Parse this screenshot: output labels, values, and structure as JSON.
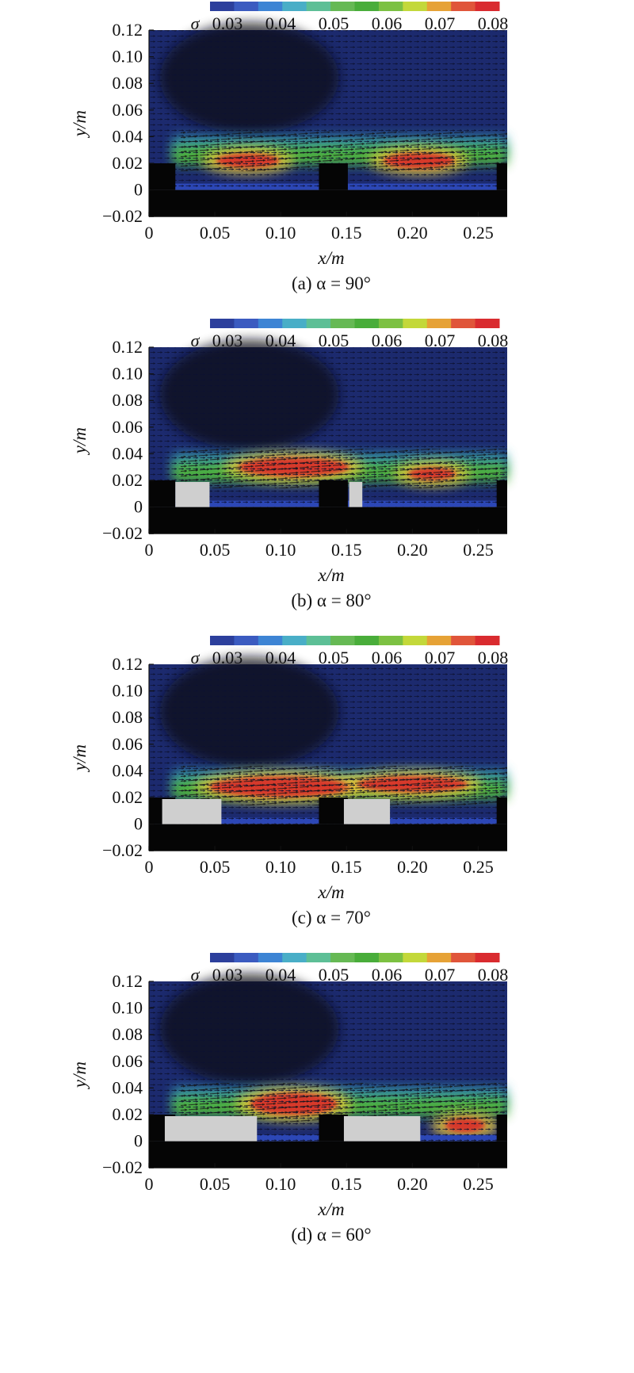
{
  "figure": {
    "colorbar": {
      "symbol": "σ",
      "tick_labels": [
        "0.03",
        "0.04",
        "0.05",
        "0.06",
        "0.07",
        "0.08"
      ],
      "colors": [
        "#2c3f9c",
        "#3b5bc0",
        "#3d84d4",
        "#49aec7",
        "#5dbf96",
        "#66b954",
        "#49ad3a",
        "#7cc142",
        "#c3d83a",
        "#e6a236",
        "#e0553a",
        "#d92b2f"
      ]
    },
    "panels": [
      {
        "caption": "(a) α = 90°",
        "ylabel": "y/m",
        "xlabel": "x/m",
        "y_ticks": [
          "0.12",
          "0.10",
          "0.08",
          "0.06",
          "0.04",
          "0.02",
          "0",
          "−0.02"
        ],
        "x_ticks": [
          "0",
          "0.05",
          "0.10",
          "0.15",
          "0.20",
          "0.25"
        ],
        "obstacles": [
          {
            "x0": 0.02,
            "x1": 0.02
          },
          {
            "x0": 0.152,
            "x1": 0.152
          }
        ]
      },
      {
        "caption": "(b) α = 80°",
        "ylabel": "y/m",
        "xlabel": "x/m",
        "y_ticks": [
          "0.12",
          "0.10",
          "0.08",
          "0.06",
          "0.04",
          "0.02",
          "0",
          "−0.02"
        ],
        "x_ticks": [
          "0",
          "0.05",
          "0.10",
          "0.15",
          "0.20",
          "0.25"
        ],
        "obstacles": [
          {
            "x0": 0.02,
            "x1": 0.046
          },
          {
            "x0": 0.152,
            "x1": 0.162
          }
        ]
      },
      {
        "caption": "(c) α = 70°",
        "ylabel": "y/m",
        "xlabel": "x/m",
        "y_ticks": [
          "0.12",
          "0.10",
          "0.08",
          "0.06",
          "0.04",
          "0.02",
          "0",
          "−0.02"
        ],
        "x_ticks": [
          "0",
          "0.05",
          "0.10",
          "0.15",
          "0.20",
          "0.25"
        ],
        "obstacles": [
          {
            "x0": 0.01,
            "x1": 0.055
          },
          {
            "x0": 0.148,
            "x1": 0.183
          }
        ]
      },
      {
        "caption": "(d) α = 60°",
        "ylabel": "y/m",
        "xlabel": "x/m",
        "y_ticks": [
          "0.12",
          "0.10",
          "0.08",
          "0.06",
          "0.04",
          "0.02",
          "0",
          "−0.02"
        ],
        "x_ticks": [
          "0",
          "0.05",
          "0.10",
          "0.15",
          "0.20",
          "0.25"
        ],
        "obstacles": [
          {
            "x0": 0.012,
            "x1": 0.082
          },
          {
            "x0": 0.148,
            "x1": 0.206
          }
        ]
      }
    ]
  }
}
